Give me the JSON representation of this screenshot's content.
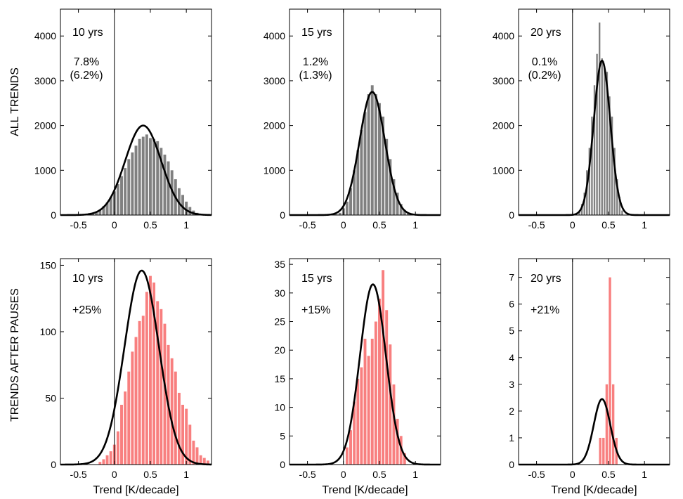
{
  "row_labels": [
    "ALL TRENDS",
    "TRENDS AFTER PAUSES"
  ],
  "xlabel": "Trend [K/decade]",
  "colors": {
    "all": "#808080",
    "pause": "#f87f7f",
    "curve": "#000000",
    "axes": "#000000"
  },
  "chart_data": [
    {
      "type": "bar",
      "panel": "all-10yrs",
      "row": 0,
      "col": 0,
      "annotation": [
        "10 yrs",
        "7.8%",
        "(6.2%)"
      ],
      "xlim": [
        -0.75,
        1.35
      ],
      "ylim": [
        0,
        4600
      ],
      "xticks": [
        -0.5,
        0,
        0.5,
        1
      ],
      "xticklabels": [
        "-0.5",
        "0",
        "0.5",
        "1"
      ],
      "yticks": [
        0,
        1000,
        2000,
        3000,
        4000
      ],
      "yticklabels": [
        "0",
        "1000",
        "2000",
        "3000",
        "4000"
      ],
      "bin_width": 0.05,
      "bin_centers": [
        -0.35,
        -0.3,
        -0.25,
        -0.2,
        -0.15,
        -0.1,
        -0.05,
        0.0,
        0.05,
        0.1,
        0.15,
        0.2,
        0.25,
        0.3,
        0.35,
        0.4,
        0.45,
        0.5,
        0.55,
        0.6,
        0.65,
        0.7,
        0.75,
        0.8,
        0.85,
        0.9,
        0.95,
        1.0,
        1.05,
        1.1,
        1.15
      ],
      "values": [
        20,
        40,
        70,
        120,
        200,
        280,
        400,
        530,
        690,
        870,
        1050,
        1250,
        1400,
        1550,
        1700,
        1750,
        1800,
        1720,
        1700,
        1650,
        1500,
        1350,
        1200,
        1000,
        800,
        600,
        450,
        300,
        180,
        100,
        50
      ],
      "fit": {
        "mean": 0.4,
        "sd": 0.25,
        "peak": 2000
      },
      "xlabel": ""
    },
    {
      "type": "bar",
      "panel": "all-15yrs",
      "row": 0,
      "col": 1,
      "annotation": [
        "15 yrs",
        "1.2%",
        "(1.3%)"
      ],
      "xlim": [
        -0.75,
        1.35
      ],
      "ylim": [
        0,
        4600
      ],
      "xticks": [
        -0.5,
        0,
        0.5,
        1
      ],
      "xticklabels": [
        "-0.5",
        "0",
        "0.5",
        "1"
      ],
      "yticks": [
        0,
        1000,
        2000,
        3000,
        4000
      ],
      "yticklabels": [
        "0",
        "1000",
        "2000",
        "3000",
        "4000"
      ],
      "bin_width": 0.05,
      "bin_centers": [
        -0.1,
        -0.05,
        0.0,
        0.05,
        0.1,
        0.15,
        0.2,
        0.25,
        0.3,
        0.35,
        0.4,
        0.45,
        0.5,
        0.55,
        0.6,
        0.65,
        0.7,
        0.75,
        0.8,
        0.85,
        0.9
      ],
      "values": [
        20,
        50,
        150,
        300,
        600,
        1000,
        1450,
        1900,
        2300,
        2700,
        2900,
        2700,
        2500,
        2200,
        1700,
        1250,
        800,
        500,
        250,
        100,
        30
      ],
      "fit": {
        "mean": 0.4,
        "sd": 0.175,
        "peak": 2750
      },
      "xlabel": ""
    },
    {
      "type": "bar",
      "panel": "all-20yrs",
      "row": 0,
      "col": 2,
      "annotation": [
        "20 yrs",
        "0.1%",
        "(0.2%)"
      ],
      "xlim": [
        -0.75,
        1.35
      ],
      "ylim": [
        0,
        4600
      ],
      "xticks": [
        -0.5,
        0,
        0.5,
        1
      ],
      "xticklabels": [
        "-0.5",
        "0",
        "0.5",
        "1"
      ],
      "yticks": [
        0,
        1000,
        2000,
        3000,
        4000
      ],
      "yticklabels": [
        "0",
        "1000",
        "2000",
        "3000",
        "4000"
      ],
      "bin_width": 0.035,
      "bin_centers": [
        0.095,
        0.13,
        0.165,
        0.2,
        0.235,
        0.27,
        0.305,
        0.34,
        0.375,
        0.41,
        0.445,
        0.48,
        0.515,
        0.55,
        0.585,
        0.62,
        0.655,
        0.69
      ],
      "values": [
        100,
        250,
        500,
        1000,
        1500,
        2200,
        2900,
        3600,
        4300,
        3500,
        3300,
        3200,
        2650,
        2200,
        1500,
        800,
        400,
        100
      ],
      "fit": {
        "mean": 0.41,
        "sd": 0.115,
        "peak": 3450
      },
      "xlabel": ""
    },
    {
      "type": "bar",
      "panel": "pause-10yrs",
      "row": 1,
      "col": 0,
      "annotation": [
        "10 yrs",
        "+25%"
      ],
      "xlim": [
        -0.75,
        1.35
      ],
      "ylim": [
        0,
        155
      ],
      "xticks": [
        -0.5,
        0,
        0.5,
        1
      ],
      "xticklabels": [
        "-0.5",
        "0",
        "0.5",
        "1"
      ],
      "yticks": [
        0,
        50,
        100,
        150
      ],
      "yticklabels": [
        "0",
        "50",
        "100",
        "150"
      ],
      "bin_width": 0.05,
      "bin_centers": [
        -0.2,
        -0.15,
        -0.1,
        -0.05,
        0.0,
        0.05,
        0.1,
        0.15,
        0.2,
        0.25,
        0.3,
        0.35,
        0.4,
        0.45,
        0.5,
        0.55,
        0.6,
        0.65,
        0.7,
        0.75,
        0.8,
        0.85,
        0.9,
        0.95,
        1.0,
        1.05,
        1.1,
        1.15,
        1.2,
        1.25,
        1.3
      ],
      "values": [
        2,
        4,
        7,
        10,
        15,
        25,
        45,
        55,
        70,
        85,
        96,
        108,
        112,
        130,
        142,
        137,
        123,
        117,
        106,
        90,
        80,
        70,
        54,
        45,
        42,
        30,
        18,
        13,
        7,
        5,
        3
      ],
      "fit": {
        "mean": 0.38,
        "sd": 0.24,
        "peak": 146
      },
      "xlabel": "Trend [K/decade]"
    },
    {
      "type": "bar",
      "panel": "pause-15yrs",
      "row": 1,
      "col": 1,
      "annotation": [
        "15 yrs",
        "+15%"
      ],
      "xlim": [
        -0.75,
        1.35
      ],
      "ylim": [
        0,
        36
      ],
      "xticks": [
        -0.5,
        0,
        0.5,
        1
      ],
      "xticklabels": [
        "-0.5",
        "0",
        "0.5",
        "1"
      ],
      "yticks": [
        0,
        5,
        10,
        15,
        20,
        25,
        30,
        35
      ],
      "yticklabels": [
        "0",
        "5",
        "10",
        "15",
        "20",
        "25",
        "30",
        "35"
      ],
      "bin_width": 0.05,
      "bin_centers": [
        0.05,
        0.1,
        0.15,
        0.2,
        0.25,
        0.3,
        0.35,
        0.4,
        0.45,
        0.5,
        0.55,
        0.6,
        0.65,
        0.7,
        0.75,
        0.8,
        0.85
      ],
      "values": [
        3,
        6,
        11,
        15,
        17,
        22,
        19,
        22,
        25,
        29,
        34,
        27,
        21,
        14,
        8,
        5,
        2
      ],
      "fit": {
        "mean": 0.41,
        "sd": 0.18,
        "peak": 31.5
      },
      "xlabel": "Trend [K/decade]"
    },
    {
      "type": "bar",
      "panel": "pause-20yrs",
      "row": 1,
      "col": 2,
      "annotation": [
        "20 yrs",
        "+21%"
      ],
      "xlim": [
        -0.75,
        1.35
      ],
      "ylim": [
        0,
        7.7
      ],
      "xticks": [
        -0.5,
        0,
        0.5,
        1
      ],
      "xticklabels": [
        "-0.5",
        "0",
        "0.5",
        "1"
      ],
      "yticks": [
        0,
        1,
        2,
        3,
        4,
        5,
        6,
        7
      ],
      "yticklabels": [
        "0",
        "1",
        "2",
        "3",
        "4",
        "5",
        "6",
        "7"
      ],
      "bin_width": 0.045,
      "bin_centers": [
        0.385,
        0.43,
        0.475,
        0.52,
        0.565,
        0.61
      ],
      "values": [
        1,
        1,
        3,
        7,
        3,
        1
      ],
      "fit": {
        "mean": 0.41,
        "sd": 0.115,
        "peak": 2.45
      },
      "xlabel": "Trend [K/decade]"
    }
  ]
}
